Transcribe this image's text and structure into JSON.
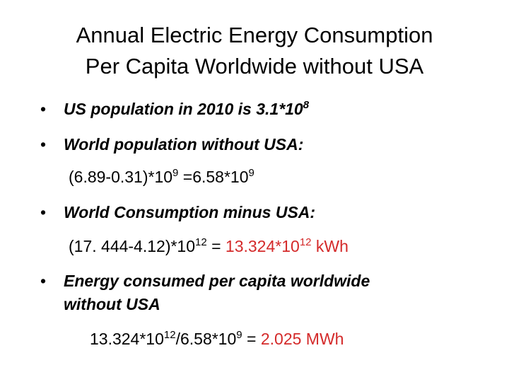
{
  "title": [
    "Annual Electric Energy Consumption",
    "Per Capita Worldwide without USA"
  ],
  "lines": [
    {
      "bullet": "•",
      "segments": [
        {
          "text": "US population in 2010 is 3.1*10"
        },
        {
          "sup": "8"
        }
      ]
    },
    {
      "bullet": "•",
      "segments": [
        {
          "text": "World population without USA:"
        }
      ]
    },
    {
      "segments": [
        {
          "text": "(6.89-0.31)*10"
        },
        {
          "sup": "9"
        },
        {
          "text": " =6.58*10"
        },
        {
          "sup": "9"
        }
      ]
    },
    {
      "bullet": "•",
      "segments": [
        {
          "text": "World Consumption minus USA:"
        }
      ]
    },
    {
      "segments": [
        {
          "text": "(17. 444-4.12)*10"
        },
        {
          "sup": "12"
        },
        {
          "text": " = "
        },
        {
          "text": "13.324*10",
          "color": "#d42a2a"
        },
        {
          "sup": "12",
          "color": "#d42a2a"
        },
        {
          "text": " kWh",
          "color": "#d42a2a"
        }
      ]
    },
    {
      "bullet": "•",
      "segments": [
        {
          "text": "Energy consumed per capita worldwide"
        }
      ]
    },
    {
      "segments": [
        {
          "text": "without USA"
        }
      ]
    },
    {
      "segments": [
        {
          "text": "13.324*10"
        },
        {
          "sup": "12"
        },
        {
          "text": "/6.58*10"
        },
        {
          "sup": "9"
        },
        {
          "text": " = "
        },
        {
          "text": "2.025 MWh",
          "color": "#d42a2a"
        }
      ]
    }
  ]
}
